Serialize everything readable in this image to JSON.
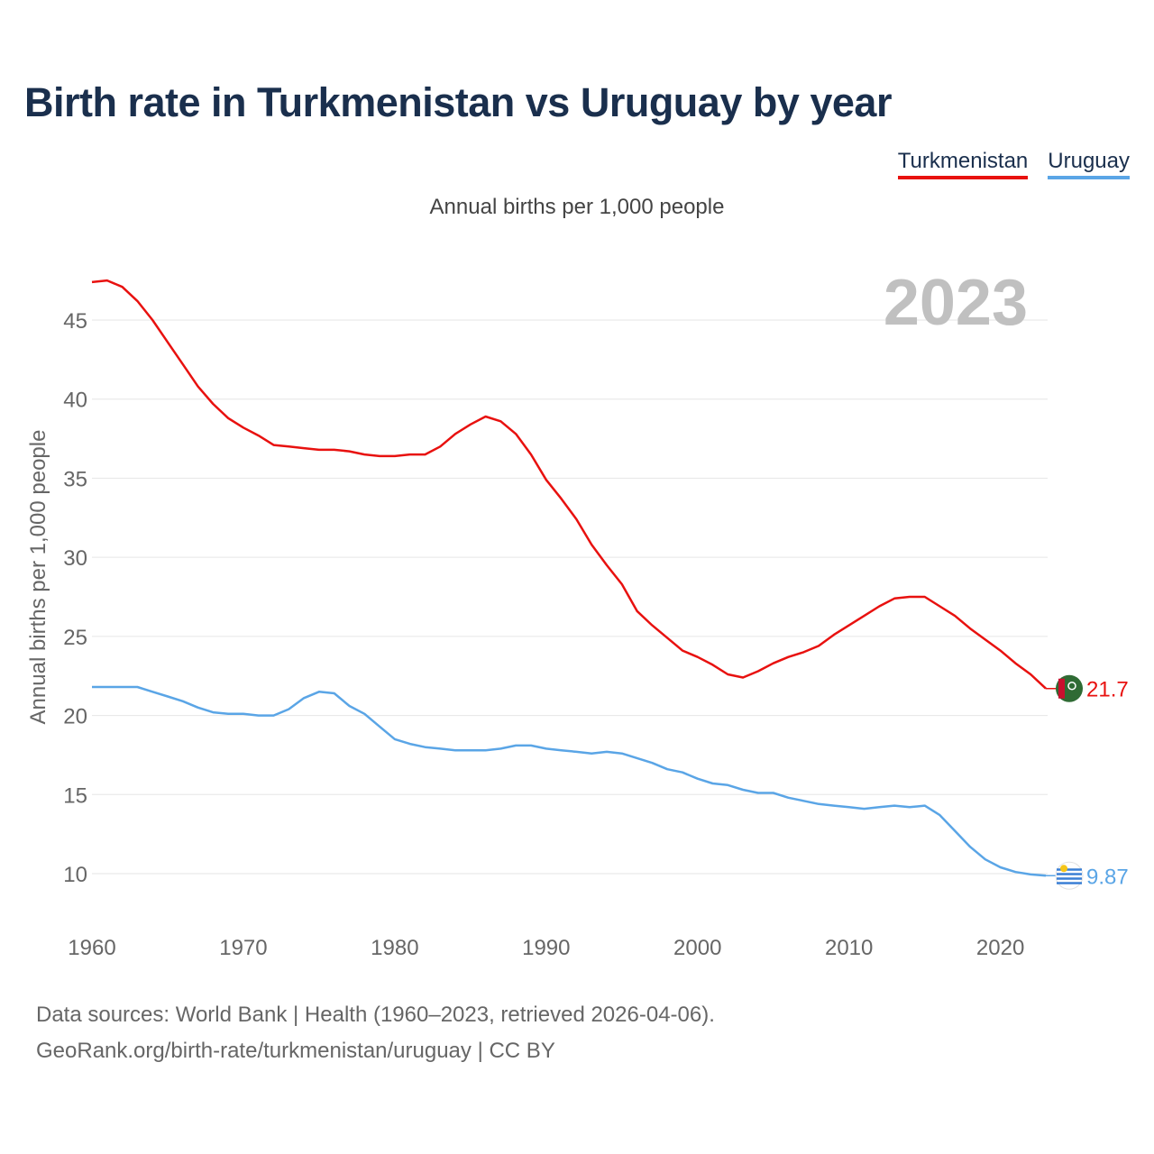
{
  "title": "Birth rate in Turkmenistan vs Uruguay by year",
  "subtitle": "Annual births per 1,000 people",
  "legend": [
    {
      "label": "Turkmenistan",
      "color": "#e8110f"
    },
    {
      "label": "Uruguay",
      "color": "#5aa5e6"
    }
  ],
  "source_line1": "Data sources: World Bank | Health (1960–2023, retrieved 2026-04-06).",
  "source_line2": "GeoRank.org/birth-rate/turkmenistan/uruguay | CC BY",
  "chart_data": {
    "type": "line",
    "title": "Birth rate in Turkmenistan vs Uruguay by year",
    "xlabel": "",
    "ylabel": "Annual births per 1,000 people",
    "year_label": "2023",
    "xlim": [
      1960,
      2023
    ],
    "ylim": [
      7.5,
      48
    ],
    "yticks": [
      10,
      15,
      20,
      25,
      30,
      35,
      40,
      45
    ],
    "xticks": [
      1960,
      1970,
      1980,
      1990,
      2000,
      2010,
      2020
    ],
    "grid": true,
    "legend_position": "top-right",
    "x": [
      1960,
      1961,
      1962,
      1963,
      1964,
      1965,
      1966,
      1967,
      1968,
      1969,
      1970,
      1971,
      1972,
      1973,
      1974,
      1975,
      1976,
      1977,
      1978,
      1979,
      1980,
      1981,
      1982,
      1983,
      1984,
      1985,
      1986,
      1987,
      1988,
      1989,
      1990,
      1991,
      1992,
      1993,
      1994,
      1995,
      1996,
      1997,
      1998,
      1999,
      2000,
      2001,
      2002,
      2003,
      2004,
      2005,
      2006,
      2007,
      2008,
      2009,
      2010,
      2011,
      2012,
      2013,
      2014,
      2015,
      2016,
      2017,
      2018,
      2019,
      2020,
      2021,
      2022,
      2023
    ],
    "series": [
      {
        "name": "Turkmenistan",
        "color": "#e8110f",
        "end_label": "21.7",
        "values": [
          47.4,
          47.5,
          47.1,
          46.2,
          45.0,
          43.6,
          42.2,
          40.8,
          39.7,
          38.8,
          38.2,
          37.7,
          37.1,
          37.0,
          36.9,
          36.8,
          36.8,
          36.7,
          36.5,
          36.4,
          36.4,
          36.5,
          36.5,
          37.0,
          37.8,
          38.4,
          38.9,
          38.6,
          37.8,
          36.5,
          34.9,
          33.7,
          32.4,
          30.8,
          29.5,
          28.3,
          26.6,
          25.7,
          24.9,
          24.1,
          23.7,
          23.2,
          22.6,
          22.4,
          22.8,
          23.3,
          23.7,
          24.0,
          24.4,
          25.1,
          25.7,
          26.3,
          26.9,
          27.4,
          27.5,
          27.5,
          26.9,
          26.3,
          25.5,
          24.8,
          24.1,
          23.3,
          22.6,
          21.7
        ]
      },
      {
        "name": "Uruguay",
        "color": "#5aa5e6",
        "end_label": "9.87",
        "values": [
          21.8,
          21.8,
          21.8,
          21.8,
          21.5,
          21.2,
          20.9,
          20.5,
          20.2,
          20.1,
          20.1,
          20.0,
          20.0,
          20.4,
          21.1,
          21.5,
          21.4,
          20.6,
          20.1,
          19.3,
          18.5,
          18.2,
          18.0,
          17.9,
          17.8,
          17.8,
          17.8,
          17.9,
          18.1,
          18.1,
          17.9,
          17.8,
          17.7,
          17.6,
          17.7,
          17.6,
          17.3,
          17.0,
          16.6,
          16.4,
          16.0,
          15.7,
          15.6,
          15.3,
          15.1,
          15.1,
          14.8,
          14.6,
          14.4,
          14.3,
          14.2,
          14.1,
          14.2,
          14.3,
          14.2,
          14.3,
          13.7,
          12.7,
          11.7,
          10.9,
          10.4,
          10.1,
          9.95,
          9.87
        ]
      }
    ]
  }
}
